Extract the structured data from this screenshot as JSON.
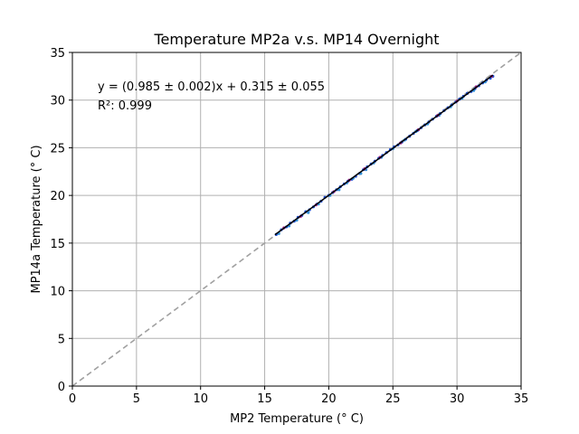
{
  "chart_data": {
    "type": "scatter",
    "title": "Temperature MP2a v.s. MP14 Overnight",
    "xlabel": "MP2 Temperature (° C)",
    "ylabel": "MP14a Temperature (° C)",
    "xlim": [
      0,
      35
    ],
    "ylim": [
      0,
      35
    ],
    "xticks": [
      0,
      5,
      10,
      15,
      20,
      25,
      30,
      35
    ],
    "yticks": [
      0,
      5,
      10,
      15,
      20,
      25,
      30,
      35
    ],
    "grid": true,
    "annotation_lines": [
      "y = (0.985 ± 0.002)x + 0.315 ± 0.055",
      "R²: 0.999"
    ],
    "fit": {
      "slope": 0.985,
      "intercept": 0.315,
      "x_range": [
        15.8,
        32.8
      ],
      "color": "#000000"
    },
    "reference_line": {
      "type": "y=x",
      "style": "dashed",
      "color": "#a0a0a0"
    },
    "series": [
      {
        "color": "#1f4fd6",
        "points": [
          [
            15.9,
            15.9
          ],
          [
            16.3,
            16.4
          ],
          [
            16.7,
            16.7
          ],
          [
            17.0,
            17.1
          ],
          [
            17.3,
            17.3
          ],
          [
            17.6,
            17.7
          ],
          [
            17.9,
            17.9
          ],
          [
            18.2,
            18.3
          ],
          [
            18.5,
            18.5
          ],
          [
            18.8,
            18.8
          ],
          [
            19.1,
            19.1
          ],
          [
            19.4,
            19.4
          ],
          [
            19.7,
            19.8
          ],
          [
            20.0,
            20.0
          ],
          [
            20.3,
            20.3
          ],
          [
            20.6,
            20.6
          ],
          [
            20.9,
            20.9
          ],
          [
            21.2,
            21.2
          ],
          [
            21.5,
            21.5
          ],
          [
            21.8,
            21.7
          ],
          [
            22.1,
            22.0
          ],
          [
            22.4,
            22.3
          ],
          [
            22.7,
            22.7
          ],
          [
            23.0,
            23.0
          ],
          [
            23.3,
            23.3
          ],
          [
            23.6,
            23.6
          ],
          [
            23.9,
            23.9
          ],
          [
            24.2,
            24.2
          ],
          [
            24.5,
            24.5
          ],
          [
            24.8,
            24.8
          ],
          [
            25.1,
            25.1
          ],
          [
            25.4,
            25.3
          ],
          [
            25.7,
            25.6
          ],
          [
            26.0,
            25.9
          ],
          [
            26.3,
            26.2
          ],
          [
            26.6,
            26.5
          ],
          [
            26.9,
            26.8
          ],
          [
            27.2,
            27.1
          ],
          [
            27.5,
            27.4
          ],
          [
            27.8,
            27.7
          ],
          [
            28.1,
            28.0
          ],
          [
            28.4,
            28.3
          ],
          [
            28.7,
            28.6
          ],
          [
            29.0,
            28.9
          ],
          [
            29.3,
            29.2
          ],
          [
            29.6,
            29.5
          ],
          [
            29.9,
            29.8
          ],
          [
            30.2,
            30.1
          ],
          [
            30.5,
            30.4
          ],
          [
            30.8,
            30.7
          ],
          [
            31.1,
            30.9
          ],
          [
            31.4,
            31.2
          ],
          [
            31.7,
            31.5
          ],
          [
            32.0,
            31.8
          ],
          [
            32.3,
            32.1
          ],
          [
            32.6,
            32.3
          ],
          [
            32.8,
            32.5
          ]
        ]
      },
      {
        "color": "#2f8fd8",
        "points": [
          [
            16.1,
            16.0
          ],
          [
            16.9,
            16.8
          ],
          [
            17.5,
            17.4
          ],
          [
            18.4,
            18.2
          ],
          [
            19.2,
            19.1
          ],
          [
            20.1,
            20.0
          ],
          [
            20.8,
            20.6
          ],
          [
            21.4,
            21.3
          ],
          [
            21.9,
            21.8
          ],
          [
            22.5,
            22.3
          ],
          [
            22.9,
            22.7
          ],
          [
            23.5,
            23.4
          ],
          [
            24.1,
            24.0
          ],
          [
            25.0,
            24.9
          ],
          [
            25.9,
            25.8
          ],
          [
            26.8,
            26.7
          ],
          [
            27.7,
            27.5
          ],
          [
            28.6,
            28.4
          ],
          [
            29.5,
            29.3
          ],
          [
            30.4,
            30.2
          ],
          [
            31.3,
            31.0
          ],
          [
            32.2,
            31.9
          ]
        ]
      },
      {
        "color": "#a01f8c",
        "points": [
          [
            16.5,
            16.6
          ],
          [
            17.8,
            17.8
          ],
          [
            19.0,
            19.0
          ],
          [
            20.4,
            20.4
          ],
          [
            21.6,
            21.6
          ],
          [
            22.8,
            22.8
          ],
          [
            24.0,
            24.0
          ],
          [
            25.6,
            25.5
          ],
          [
            27.0,
            26.9
          ],
          [
            28.5,
            28.4
          ],
          [
            30.0,
            29.9
          ],
          [
            31.5,
            31.4
          ],
          [
            32.7,
            32.5
          ]
        ]
      }
    ]
  }
}
